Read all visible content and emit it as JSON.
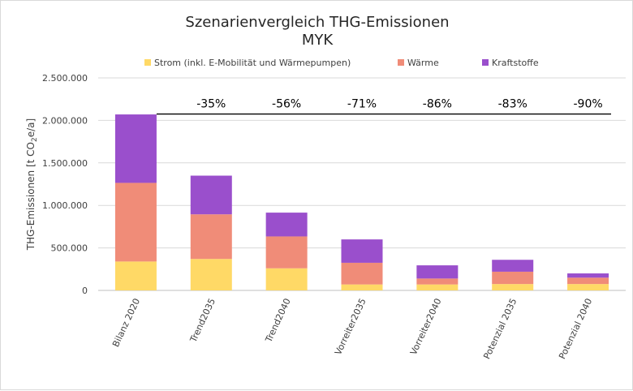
{
  "chart_data": {
    "type": "bar",
    "stacked": true,
    "title": "Szenarienvergleich THG-Emissionen",
    "subtitle": "MYK",
    "ylabel_parts": {
      "before": "THG-Emissionen [t CO",
      "sub": "2",
      "after": "e/a]"
    },
    "ylim": [
      0,
      2500000
    ],
    "yticks": [
      0,
      500000,
      1000000,
      1500000,
      2000000,
      2500000
    ],
    "ytick_labels": [
      "0",
      "500.000",
      "1.000.000",
      "1.500.000",
      "2.000.000",
      "2.500.000"
    ],
    "grid": true,
    "legend_position": "top",
    "categories": [
      "Bilanz 2020",
      "Trend2035",
      "Trend2040",
      "Vorreiter2035",
      "Vorreiter2040",
      "Potenzial 2035",
      "Potenzial 2040"
    ],
    "series": [
      {
        "name": "Strom (inkl. E-Mobilität und Wärmepumpen)",
        "color": "#ffd966",
        "values": [
          340000,
          370000,
          260000,
          70000,
          70000,
          75000,
          75000
        ]
      },
      {
        "name": "Wärme",
        "color": "#f08c78",
        "values": [
          925000,
          525000,
          375000,
          255000,
          70000,
          145000,
          75000
        ]
      },
      {
        "name": "Kraftstoffe",
        "color": "#9a4fcc",
        "values": [
          805000,
          455000,
          280000,
          275000,
          155000,
          140000,
          50000
        ]
      }
    ],
    "reduction_labels": [
      "-35%",
      "-56%",
      "-71%",
      "-86%",
      "-83%",
      "-90%"
    ],
    "reduction_line_level": 2075000
  }
}
